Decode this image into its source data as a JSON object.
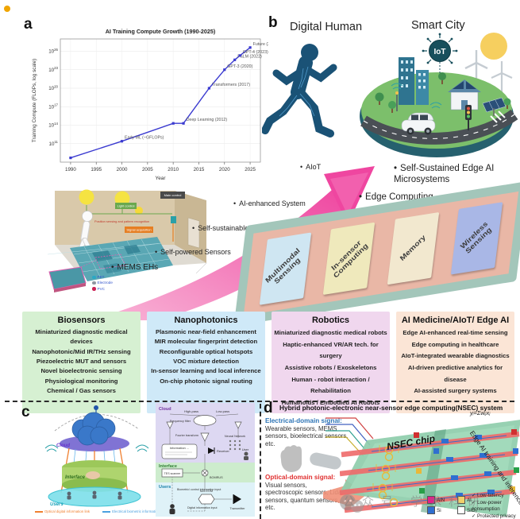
{
  "glyphs": {
    "bullet": "•",
    "check": "✓"
  },
  "page": {
    "corner_bullet_color": "#f0a500"
  },
  "panel_a": {
    "label": "a",
    "chart_data": {
      "type": "line",
      "title": "AI Training Compute Growth (1990-2025)",
      "xlabel": "Year",
      "ylabel": "Training Compute (FLOPs, log scale)",
      "x_domain": [
        1988,
        2027
      ],
      "log_y_domain": [
        8,
        28
      ],
      "xticks": [
        1990,
        1995,
        2000,
        2005,
        2010,
        2015,
        2020,
        2025
      ],
      "ytick_exponents": [
        11,
        14,
        17,
        20,
        23,
        26
      ],
      "line_color": "#3a3ad0",
      "grid": true,
      "legend_position": "none",
      "points": [
        {
          "year": 1990,
          "log_flops": 8.7,
          "label": ""
        },
        {
          "year": 2000,
          "log_flops": 11.4,
          "label": "Early ML (~GFLOPs)"
        },
        {
          "year": 2010,
          "log_flops": 14.3,
          "label": ""
        },
        {
          "year": 2012,
          "log_flops": 14.3,
          "label": "Deep Learning (2012)"
        },
        {
          "year": 2017,
          "log_flops": 20.0,
          "label": "Transformers (2017)"
        },
        {
          "year": 2020,
          "log_flops": 23.0,
          "label": "GPT-3 (2020)"
        },
        {
          "year": 2022,
          "log_flops": 24.6,
          "label": "PaLM (2022)"
        },
        {
          "year": 2023,
          "log_flops": 25.3,
          "label": "GPT-4 (2023)"
        },
        {
          "year": 2025,
          "log_flops": 26.6,
          "label": "Future (2025+)"
        }
      ]
    },
    "room_labels": {
      "main_control": "Main control",
      "light_control": "Light control",
      "position": "Position sensing and pattern recognition",
      "signal": "Signal acquisition"
    },
    "mems_bullet": "MEMS EHs",
    "mems_legend": [
      {
        "label": "PET",
        "color": "#2ba8c4"
      },
      {
        "label": "Electrode",
        "color": "#9097a0"
      },
      {
        "label": "PVC",
        "color": "#cc2255"
      }
    ]
  },
  "panel_b": {
    "label": "b",
    "digital_human_title": "Digital Human",
    "smart_city_title": "Smart City",
    "iot_label": "IoT",
    "arrow_color": "#f0509e",
    "bullets_left": [
      "AIoT",
      "AI-enhanced System",
      "Self-sustainable Systems",
      "Self-powered Sensors"
    ],
    "bullets_right": [
      "Self-Sustained Edge AI Microsystems",
      "Edge Computing"
    ],
    "chip_rim_color": "#a3c6ba",
    "chip_top_color": "#e9b7a6",
    "chip_blocks": [
      {
        "label": "Multimodal Sensing",
        "color": "#cfe6f2"
      },
      {
        "label": "In-sensor Computing",
        "color": "#efe9bc"
      },
      {
        "label": "Memory",
        "color": "#f2e8cf"
      },
      {
        "label": "Wireless Sensing",
        "color": "#a9b7e6"
      }
    ]
  },
  "categories": [
    {
      "title": "Biosensors",
      "color": "#d6f0d2",
      "items": [
        "Miniaturized diagnostic medical devices",
        "Nanophotonic/Mid IR/THz sensing",
        "Piezoelectric MUT and sensors",
        "Novel bioelectronic sensing",
        "Physiological monitoring",
        "Chemical / Gas sensors"
      ]
    },
    {
      "title": "Nanophotonics",
      "color": "#cfe9f8",
      "items": [
        "Plasmonic near-field enhancement",
        "MIR molecular fingerprint detection",
        "Reconfigurable optical hotspots",
        "VOC mixture detection",
        "In-sensor learning and local inference",
        "On-chip photonic signal routing"
      ]
    },
    {
      "title": "Robotics",
      "color": "#f0d7ee",
      "items": [
        "Miniaturized diagnostic medical robots",
        "Haptic-enhanced VR/AR tech. for surgery",
        "Assistive robots / Exoskeletons",
        "Human - robot interaction / Rehabilitation",
        "Humanoids / Embodied AI Robots"
      ]
    },
    {
      "title": "AI Medicine/AIoT/ Edge AI",
      "color": "#fbe5d6",
      "items": [
        "Edge AI-enhanced real-time sensing",
        "Edge computing in healthcare",
        "AIoT-integrated wearable diagnostics",
        "AI-driven predictive analytics for disease",
        "AI-assisted surgery systems"
      ]
    }
  ],
  "panel_c": {
    "label": "c",
    "left": {
      "layer_labels": [
        "Cloud",
        "Interface",
        "Users"
      ],
      "legend": [
        {
          "label": "Optical digital information link",
          "color": "#f08030"
        },
        {
          "label": "Electrical biometric information link",
          "color": "#4aa0e0"
        }
      ]
    },
    "right": {
      "section_labels": [
        "Cloud",
        "Interface",
        "Users"
      ],
      "highpass": "High-pass",
      "lowpass": "Low-pass",
      "freq_filter": "Frequency filter",
      "fourier": "Fourier transform",
      "information": "Information ...",
      "receiver": "Receiver",
      "neural_network": "Neural Network",
      "user": "User",
      "tes_scanner": "TES scanner",
      "bomrus": "BOMRUS",
      "biometric_input": "Biometric/ control information input",
      "mzi_eom": "MZI EOM",
      "digital_input": "Digital information input",
      "transmitter": "Transmitter"
    }
  },
  "panel_d": {
    "label": "d",
    "title": "Hybrid photonic-electronic near-sensor edge computing(NSEC) system",
    "electrical_heading": "Electrical-domain signal:",
    "electrical_body": "Wearable sensors, MEMS sensors, bioelectrical sensors, etc.",
    "optical_heading": "Optical-domain signal:",
    "optical_body": "Visual sensors, spectroscopic sensors, Lidar sensors, quantum sensors, etc.",
    "electrical_color": "#2e75b6",
    "optical_color": "#e03030",
    "chip_label": "NSEC chip",
    "formula": "yᵢ=Σwᵢⱼxⱼ",
    "side_label": "Edge AI training and inference",
    "legend": [
      {
        "label": "AlN",
        "color": "#e0218a"
      },
      {
        "label": "Al",
        "color": "#f2d06b"
      },
      {
        "label": "Si",
        "color": "#2f6fd0"
      },
      {
        "label": "SiO₂",
        "color": "#ffffff"
      }
    ],
    "benefits": [
      "Low-latency",
      "Low-power consumption",
      "Protected privacy"
    ],
    "watermark": "公众号 学术科研"
  }
}
